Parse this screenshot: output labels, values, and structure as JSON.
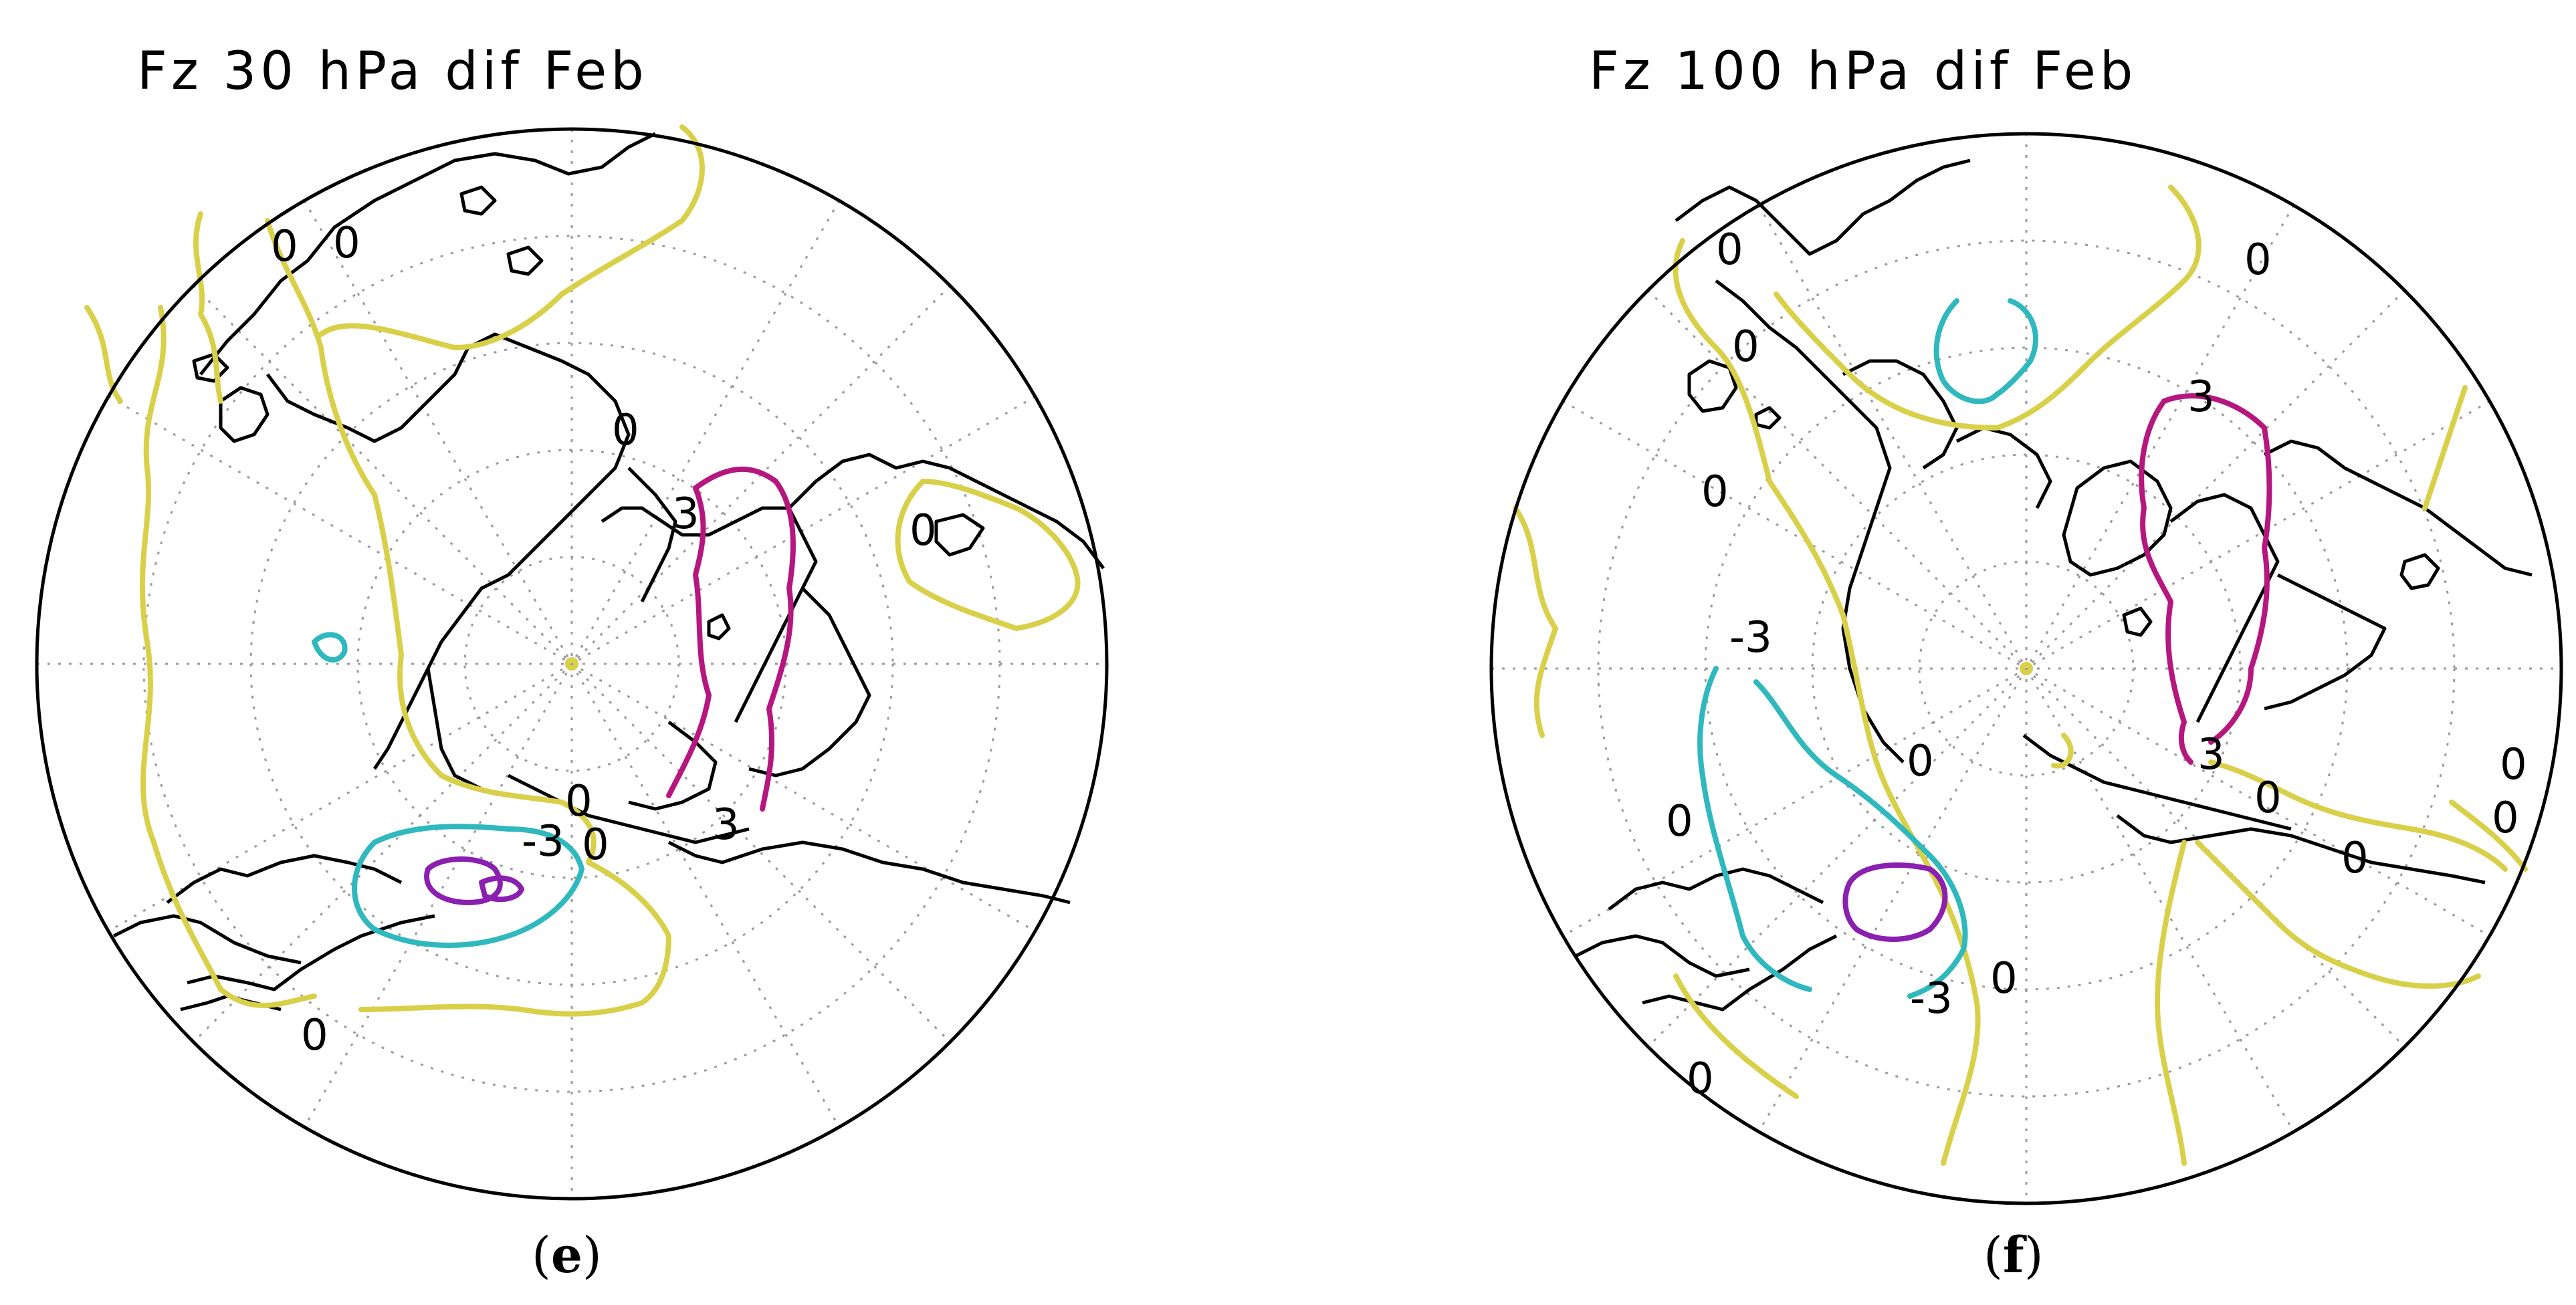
{
  "colors": {
    "zero_contour": "#d9d04a",
    "positive_contour": "#b5177f",
    "negative_contour": "#2fb8be",
    "inner_contour": "#8a1fb0",
    "coastline": "#000000",
    "grid": "#9a9a9a"
  },
  "panels": [
    {
      "title": "Fz 30 hPa dif Feb",
      "caption_letter": "e",
      "contour_labels": [
        "0",
        "0",
        "0",
        "0",
        "3",
        "3",
        "0",
        "-3",
        "0",
        "0"
      ]
    },
    {
      "title": "Fz 100 hPa dif Feb",
      "caption_letter": "f",
      "contour_labels": [
        "0",
        "0",
        "0",
        "0",
        "3",
        "-3",
        "0",
        "3",
        "0",
        "0",
        "0",
        "0",
        "-3",
        "0",
        "0",
        "0"
      ]
    }
  ]
}
